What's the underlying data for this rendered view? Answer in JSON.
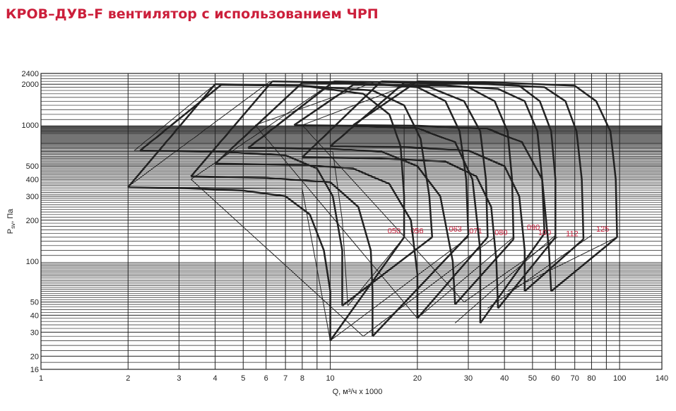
{
  "title": "КРОВ–ДУВ–F вентилятор с использованием ЧРП",
  "chart_data": {
    "type": "line",
    "title": "КРОВ–ДУВ–F вентилятор с использованием ЧРП",
    "xlabel": "Q, м³/ч x 1000",
    "ylabel": "P_sv, Па",
    "x_scale": "log",
    "y_scale": "log",
    "xlim": [
      1,
      140
    ],
    "ylim": [
      16,
      2400
    ],
    "grid": true,
    "x_ticks": [
      1,
      2,
      3,
      4,
      5,
      6,
      7,
      8,
      10,
      20,
      30,
      40,
      50,
      60,
      70,
      80,
      100,
      140
    ],
    "y_ticks": [
      16,
      20,
      30,
      40,
      50,
      100,
      200,
      300,
      400,
      500,
      1000,
      2000,
      2400
    ],
    "line_color": "#222222",
    "label_color": "#cc1f3b",
    "series": [
      {
        "name": "050",
        "curve_top": [
          [
            4,
            2000
          ],
          [
            8,
            1950
          ],
          [
            13,
            1700
          ],
          [
            16,
            1200
          ],
          [
            17.5,
            700
          ],
          [
            18,
            300
          ],
          [
            18,
            150
          ]
        ],
        "curve_bottom": [
          [
            2,
            350
          ],
          [
            3,
            345
          ],
          [
            5,
            330
          ],
          [
            7,
            300
          ],
          [
            8.5,
            220
          ],
          [
            9.5,
            120
          ],
          [
            10,
            60
          ],
          [
            10,
            26
          ]
        ],
        "corners": {
          "top_left": [
            4,
            2000
          ],
          "bottom_left": [
            2,
            350
          ],
          "bottom_right": [
            10,
            26
          ],
          "top_right": [
            18,
            150
          ]
        },
        "label_at": [
          17.5,
          160
        ]
      },
      {
        "name": "056",
        "curve_top": [
          [
            4.2,
            1980
          ],
          [
            8,
            1950
          ],
          [
            14,
            1800
          ],
          [
            18,
            1400
          ],
          [
            20.5,
            800
          ],
          [
            22,
            300
          ],
          [
            22.5,
            150
          ]
        ],
        "curve_bottom": [
          [
            2.2,
            650
          ],
          [
            4,
            640
          ],
          [
            7,
            600
          ],
          [
            9,
            480
          ],
          [
            10.2,
            300
          ],
          [
            11,
            120
          ],
          [
            11,
            47
          ]
        ],
        "corners": {
          "top_left": [
            4.2,
            1980
          ],
          "bottom_left": [
            2.2,
            650
          ],
          "bottom_right": [
            11,
            47
          ],
          "top_right": [
            22.5,
            150
          ]
        },
        "label_at": [
          21,
          160
        ]
      },
      {
        "name": "063",
        "curve_top": [
          [
            6.3,
            2100
          ],
          [
            12,
            2050
          ],
          [
            20,
            1900
          ],
          [
            25,
            1500
          ],
          [
            28,
            900
          ],
          [
            29.5,
            400
          ],
          [
            30,
            155
          ]
        ],
        "curve_bottom": [
          [
            3.3,
            420
          ],
          [
            6,
            410
          ],
          [
            10,
            380
          ],
          [
            12.5,
            250
          ],
          [
            13.8,
            120
          ],
          [
            14,
            60
          ],
          [
            14,
            28
          ]
        ],
        "corners": {
          "top_left": [
            6.3,
            2100
          ],
          "bottom_left": [
            3.3,
            420
          ],
          "bottom_right": [
            14,
            28
          ],
          "top_right": [
            30,
            155
          ]
        },
        "label_at": [
          28.5,
          165
        ]
      },
      {
        "name": "071",
        "curve_top": [
          [
            8,
            2050
          ],
          [
            15,
            2000
          ],
          [
            22,
            1900
          ],
          [
            29,
            1500
          ],
          [
            33,
            900
          ],
          [
            34.5,
            400
          ],
          [
            35,
            150
          ]
        ],
        "curve_bottom": [
          [
            4,
            520
          ],
          [
            8,
            510
          ],
          [
            12,
            480
          ],
          [
            16,
            370
          ],
          [
            19,
            200
          ],
          [
            20,
            80
          ],
          [
            20,
            38
          ]
        ],
        "corners": {
          "top_left": [
            8,
            2050
          ],
          "bottom_left": [
            4,
            520
          ],
          "bottom_right": [
            20,
            38
          ],
          "top_right": [
            35,
            150
          ]
        },
        "label_at": [
          33.5,
          160
        ]
      },
      {
        "name": "080",
        "curve_top": [
          [
            10.3,
            2100
          ],
          [
            20,
            2050
          ],
          [
            30,
            1900
          ],
          [
            37,
            1500
          ],
          [
            41,
            900
          ],
          [
            42.5,
            400
          ],
          [
            43,
            145
          ]
        ],
        "curve_bottom": [
          [
            5.2,
            680
          ],
          [
            10,
            670
          ],
          [
            15,
            640
          ],
          [
            20,
            500
          ],
          [
            24,
            300
          ],
          [
            26.5,
            100
          ],
          [
            27,
            48
          ]
        ],
        "corners": {
          "top_left": [
            10.3,
            2100
          ],
          "bottom_left": [
            5.2,
            680
          ],
          "bottom_right": [
            27,
            48
          ],
          "top_right": [
            43,
            145
          ]
        },
        "label_at": [
          41,
          155
        ]
      },
      {
        "name": "090",
        "curve_top": [
          [
            12,
            1980
          ],
          [
            25,
            1950
          ],
          [
            38,
            1850
          ],
          [
            47,
            1500
          ],
          [
            52,
            900
          ],
          [
            54,
            400
          ],
          [
            55,
            160
          ]
        ],
        "curve_bottom": [
          [
            7.5,
            1000
          ],
          [
            12,
            990
          ],
          [
            20,
            950
          ],
          [
            27,
            750
          ],
          [
            31,
            400
          ],
          [
            33,
            120
          ],
          [
            33,
            35
          ]
        ],
        "corners": {
          "top_left": [
            12,
            1980
          ],
          "bottom_left": [
            7.5,
            1000
          ],
          "bottom_right": [
            33,
            35
          ],
          "top_right": [
            55,
            160
          ]
        },
        "label_at": [
          53,
          170
        ]
      },
      {
        "name": "100",
        "curve_top": [
          [
            15,
            2100
          ],
          [
            30,
            2050
          ],
          [
            45,
            1950
          ],
          [
            53,
            1500
          ],
          [
            58,
            900
          ],
          [
            60,
            400
          ],
          [
            60,
            150
          ]
        ],
        "curve_bottom": [
          [
            8,
            580
          ],
          [
            15,
            570
          ],
          [
            25,
            540
          ],
          [
            32,
            420
          ],
          [
            36,
            250
          ],
          [
            37.5,
            100
          ],
          [
            38,
            45
          ]
        ],
        "corners": {
          "top_left": [
            15,
            2100
          ],
          "bottom_left": [
            8,
            580
          ],
          "bottom_right": [
            38,
            45
          ],
          "top_right": [
            60,
            150
          ]
        },
        "label_at": [
          58,
          155
        ]
      },
      {
        "name": "112",
        "curve_top": [
          [
            18,
            2050
          ],
          [
            35,
            2000
          ],
          [
            55,
            1900
          ],
          [
            65,
            1500
          ],
          [
            71,
            900
          ],
          [
            74,
            400
          ],
          [
            75,
            145
          ]
        ],
        "curve_bottom": [
          [
            10,
            700
          ],
          [
            18,
            690
          ],
          [
            30,
            650
          ],
          [
            40,
            500
          ],
          [
            45,
            300
          ],
          [
            47,
            120
          ],
          [
            47,
            60
          ]
        ],
        "corners": {
          "top_left": [
            18,
            2050
          ],
          "bottom_left": [
            10,
            700
          ],
          "bottom_right": [
            47,
            60
          ],
          "top_right": [
            75,
            145
          ]
        },
        "label_at": [
          72,
          152
        ]
      },
      {
        "name": "125",
        "curve_top": [
          [
            20,
            2100
          ],
          [
            40,
            2050
          ],
          [
            70,
            1950
          ],
          [
            83,
            1500
          ],
          [
            93,
            900
          ],
          [
            97,
            400
          ],
          [
            98,
            150
          ]
        ],
        "curve_bottom": [
          [
            12,
            1000
          ],
          [
            20,
            990
          ],
          [
            35,
            940
          ],
          [
            46,
            750
          ],
          [
            54,
            400
          ],
          [
            57,
            120
          ],
          [
            58,
            60
          ]
        ],
        "corners": {
          "top_left": [
            20,
            2100
          ],
          "bottom_left": [
            12,
            1000
          ],
          "bottom_right": [
            58,
            60
          ],
          "top_right": [
            98,
            150
          ]
        },
        "label_at": [
          92,
          165
        ]
      }
    ],
    "frames": [
      {
        "name": "050",
        "points": [
          [
            4,
            2000
          ],
          [
            2.1,
            650
          ],
          [
            10.2,
            640
          ],
          [
            11,
            200
          ],
          [
            11.5,
            47
          ],
          [
            18,
            150
          ],
          [
            18,
            1200
          ]
        ]
      },
      {
        "name": "063",
        "points": [
          [
            6.2,
            2100
          ],
          [
            1.99,
            350
          ],
          [
            8,
            340
          ],
          [
            10,
            26
          ],
          [
            30,
            150
          ]
        ]
      },
      {
        "name": "080",
        "points": [
          [
            10.3,
            2100
          ],
          [
            3.3,
            400
          ],
          [
            13,
            28
          ],
          [
            37,
            150
          ]
        ]
      },
      {
        "name": "100",
        "points": [
          [
            14.5,
            2100
          ],
          [
            5.5,
            1000
          ],
          [
            20,
            38
          ],
          [
            43,
            150
          ]
        ]
      },
      {
        "name": "125",
        "points": [
          [
            20,
            2100
          ],
          [
            8,
            1000
          ],
          [
            29,
            50
          ],
          [
            61,
            150
          ]
        ]
      },
      {
        "name": "extra1",
        "points": [
          [
            27,
            35
          ],
          [
            60,
            155
          ]
        ]
      },
      {
        "name": "extra2",
        "points": [
          [
            35,
            45
          ],
          [
            80,
            155
          ]
        ]
      },
      {
        "name": "extra3",
        "points": [
          [
            41,
            60
          ],
          [
            98,
            150
          ]
        ]
      }
    ]
  }
}
